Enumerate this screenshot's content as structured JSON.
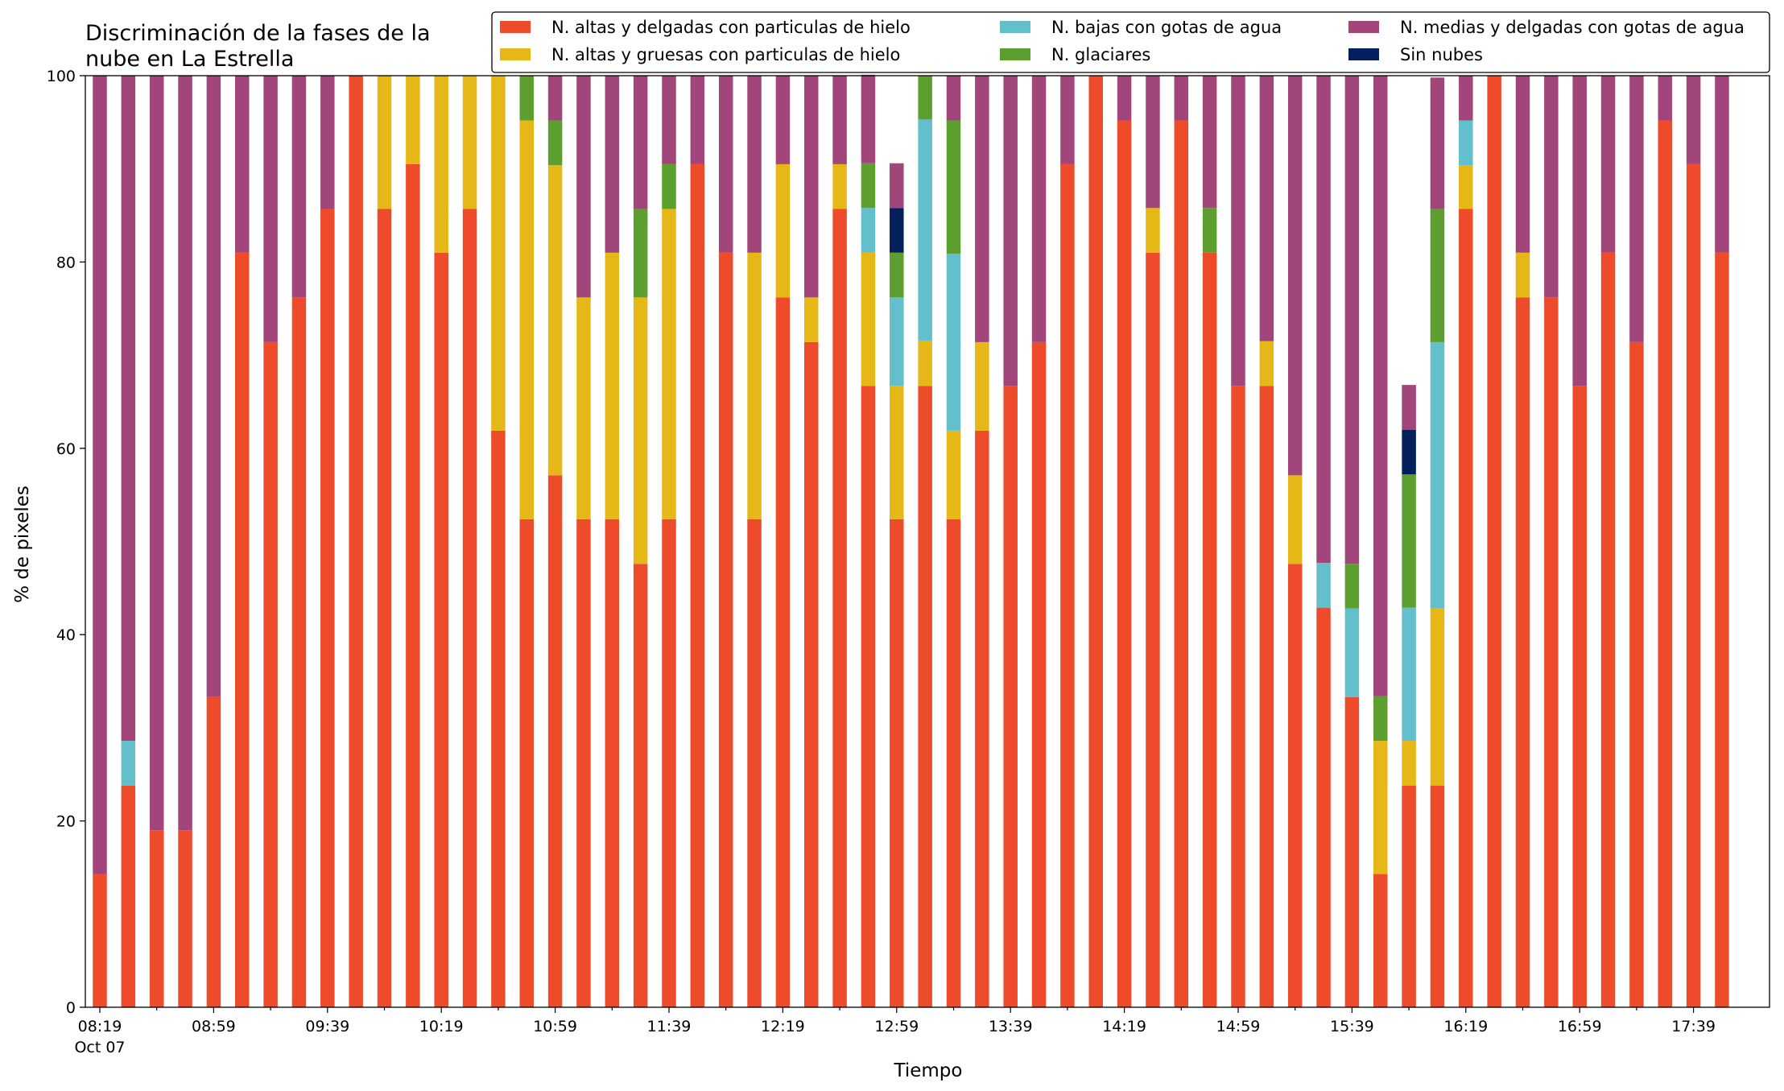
{
  "chart_data": {
    "type": "bar",
    "stacked": true,
    "title_lines": [
      "Discriminación de la fases de la",
      "nube en La Estrella"
    ],
    "xlabel": "Tiempo",
    "ylabel": "% de pixeles",
    "ylim": [
      0,
      100
    ],
    "yticks": [
      "0",
      "20",
      "40",
      "60",
      "80",
      "100"
    ],
    "xtick_labels": [
      "08:19",
      "08:59",
      "09:39",
      "10:19",
      "10:59",
      "11:39",
      "12:19",
      "12:59",
      "13:39",
      "14:19",
      "14:59",
      "15:39",
      "16:19",
      "16:59",
      "17:39"
    ],
    "xtick_date": "Oct 07",
    "legend_position": "top-right",
    "grid": false,
    "categories": [
      "08:19",
      "08:29",
      "08:39",
      "08:49",
      "08:59",
      "09:09",
      "09:19",
      "09:29",
      "09:39",
      "09:49",
      "09:59",
      "10:09",
      "10:19",
      "10:29",
      "10:39",
      "10:49",
      "10:59",
      "11:09",
      "11:19",
      "11:29",
      "11:39",
      "11:49",
      "11:59",
      "12:09",
      "12:19",
      "12:29",
      "12:39",
      "12:49",
      "12:59",
      "13:09",
      "13:19",
      "13:29",
      "13:39",
      "13:49",
      "13:59",
      "14:09",
      "14:19",
      "14:29",
      "14:39",
      "14:49",
      "14:59",
      "15:09",
      "15:19",
      "15:29",
      "15:39",
      "15:49",
      "15:59",
      "16:09",
      "16:19",
      "16:29",
      "16:39",
      "16:49",
      "16:59",
      "17:09",
      "17:19",
      "17:29",
      "17:39",
      "17:49"
    ],
    "series": [
      {
        "name": "N. altas y delgadas con particulas de hielo",
        "color": "#ee4b2b",
        "values": [
          14.3,
          23.8,
          19.0,
          19.0,
          33.3,
          81.0,
          71.4,
          76.2,
          85.7,
          100,
          85.7,
          90.5,
          81.0,
          85.7,
          61.9,
          52.4,
          57.1,
          52.4,
          52.4,
          47.6,
          52.4,
          90.5,
          81.0,
          52.4,
          76.2,
          71.4,
          85.7,
          66.7,
          52.4,
          66.7,
          52.4,
          61.9,
          66.7,
          71.4,
          90.5,
          100,
          95.2,
          81.0,
          95.2,
          81.0,
          66.7,
          66.7,
          47.6,
          42.9,
          33.3,
          14.3,
          23.8,
          23.8,
          85.7,
          100,
          76.2,
          76.2,
          66.7,
          81.0,
          71.4,
          95.2,
          90.5,
          81.0
        ]
      },
      {
        "name": "N. altas y gruesas con particulas de hielo",
        "color": "#e6b817",
        "values": [
          0,
          0,
          0,
          0,
          0,
          0,
          0,
          0,
          0,
          0,
          14.3,
          9.5,
          19.0,
          14.3,
          38.1,
          42.8,
          33.3,
          23.8,
          28.6,
          28.6,
          33.3,
          0,
          0,
          28.6,
          14.3,
          4.8,
          4.8,
          14.3,
          14.3,
          4.8,
          9.5,
          9.5,
          0,
          0,
          0,
          0,
          0,
          4.8,
          0,
          0,
          0,
          4.8,
          9.5,
          0,
          0,
          14.3,
          4.8,
          19.0,
          4.7,
          0,
          4.8,
          0,
          0,
          0,
          0,
          0,
          0,
          0
        ]
      },
      {
        "name": "N. bajas con gotas de agua",
        "color": "#62bfcb",
        "values": [
          0,
          4.8,
          0,
          0,
          0,
          0,
          0,
          0,
          0,
          0,
          0,
          0,
          0,
          0,
          0,
          0,
          0,
          0,
          0,
          0,
          0,
          0,
          0,
          0,
          0,
          0,
          0,
          4.8,
          9.5,
          23.8,
          19.0,
          0,
          0,
          0,
          0,
          0,
          0,
          0,
          0,
          0,
          0,
          0,
          0,
          4.8,
          9.5,
          0,
          14.3,
          28.6,
          4.8,
          0,
          0,
          0,
          0,
          0,
          0,
          0,
          0,
          0
        ]
      },
      {
        "name": "N. glaciares",
        "color": "#5c9f2e",
        "values": [
          0,
          0,
          0,
          0,
          0,
          0,
          0,
          0,
          0,
          0,
          0,
          0,
          0,
          0,
          0,
          4.8,
          4.8,
          0,
          0,
          9.5,
          4.8,
          0,
          0,
          0,
          0,
          0,
          0,
          4.8,
          4.8,
          4.7,
          14.3,
          0,
          0,
          0,
          0,
          0,
          0,
          0,
          0,
          4.8,
          0,
          0,
          0,
          0,
          4.8,
          4.8,
          14.3,
          14.3,
          0,
          0,
          0,
          0,
          0,
          0,
          0,
          0,
          0,
          0
        ]
      },
      {
        "name": "Sin nubes",
        "color": "#03205c",
        "values": [
          0,
          0,
          0,
          0,
          0,
          0,
          0,
          0,
          0,
          0,
          0,
          0,
          0,
          0,
          0,
          0,
          0,
          0,
          0,
          0,
          0,
          0,
          0,
          0,
          0,
          0,
          0,
          0,
          4.8,
          0,
          0,
          0,
          0,
          0,
          0,
          0,
          0,
          0,
          0,
          0,
          0,
          0,
          0,
          0,
          0,
          0,
          4.8,
          0,
          0,
          0,
          0,
          0,
          0,
          0,
          0,
          0,
          0,
          0
        ]
      },
      {
        "name": "N. medias y delgadas con gotas de agua",
        "color": "#a1457a",
        "values": [
          85.7,
          71.4,
          81.0,
          81.0,
          66.7,
          19.0,
          28.6,
          23.8,
          14.3,
          0,
          0,
          0,
          0,
          0,
          0,
          0,
          4.8,
          23.8,
          19.0,
          14.3,
          9.5,
          9.5,
          19.0,
          19.0,
          9.5,
          23.8,
          9.5,
          9.5,
          4.8,
          0,
          4.8,
          28.6,
          33.3,
          28.6,
          9.5,
          0,
          4.8,
          14.2,
          4.8,
          14.2,
          33.3,
          28.5,
          42.9,
          52.3,
          52.4,
          66.6,
          4.8,
          14.1,
          4.8,
          0,
          19.0,
          23.8,
          33.3,
          19.0,
          28.6,
          4.8,
          9.5,
          19.0
        ]
      }
    ],
    "legend_order": [
      0,
      1,
      2,
      3,
      5,
      4
    ]
  }
}
